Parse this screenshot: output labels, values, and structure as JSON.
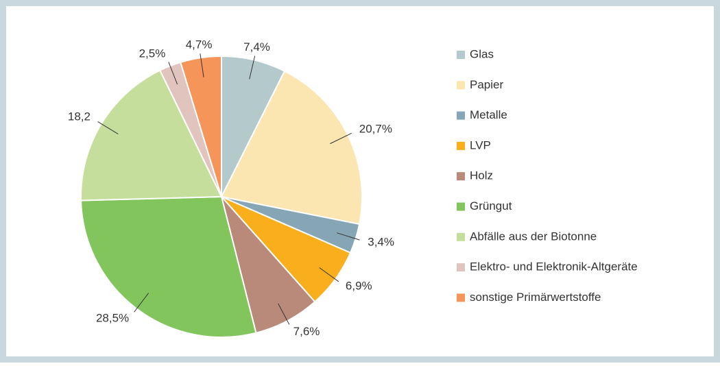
{
  "chart_data": {
    "type": "pie",
    "categories": [
      "Glas",
      "Papier",
      "Metalle",
      "LVP",
      "Holz",
      "Grüngut",
      "Abfälle aus der Biotonne",
      "Elektro- und Elektronik-Altgeräte",
      "sonstige Primärwertstoffe"
    ],
    "values": [
      7.4,
      20.7,
      3.4,
      6.9,
      7.6,
      28.5,
      18.2,
      2.5,
      4.7
    ],
    "value_labels": [
      "7,4%",
      "20,7%",
      "3,4%",
      "6,9%",
      "7,6%",
      "28,5%",
      "18,2",
      "2,5%",
      "4,7%"
    ],
    "colors": [
      "#b3c9cc",
      "#fbe5b0",
      "#86a6b5",
      "#f9ae1b",
      "#b98a7a",
      "#82c55d",
      "#c5de9c",
      "#e0c4bd",
      "#f5955a"
    ],
    "legend": "right"
  }
}
